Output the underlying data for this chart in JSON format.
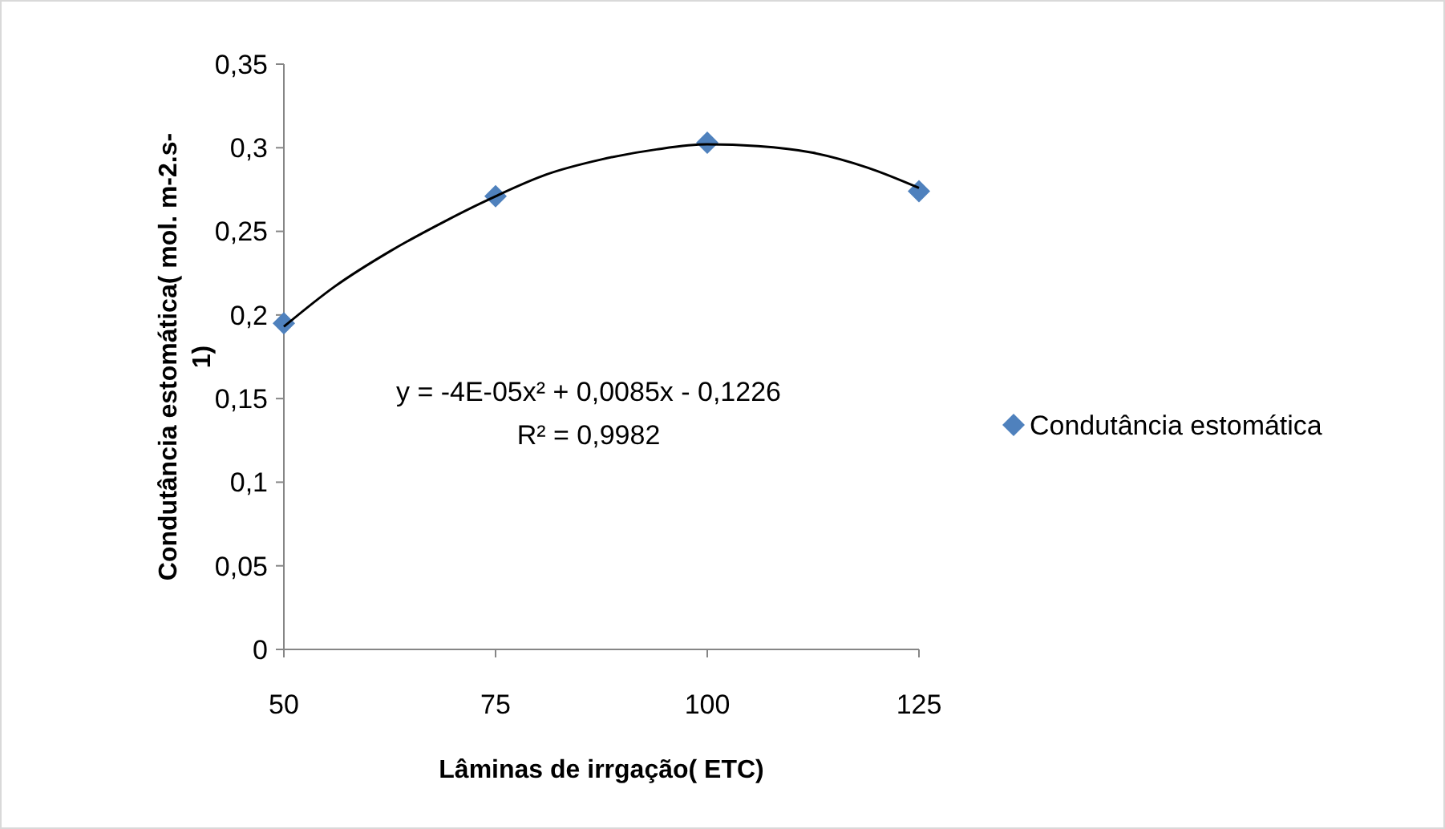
{
  "chart_data": {
    "type": "scatter",
    "xlabel": "Lâminas de irrgação( ETC)",
    "ylabel": "Condutância estomática( mol. m-2.s-1)",
    "x": [
      50,
      75,
      100,
      125
    ],
    "series": [
      {
        "name": "Condutância estomática",
        "color": "#4f81bd",
        "marker": "diamond",
        "values": [
          0.195,
          0.271,
          0.303,
          0.274
        ]
      },
      {
        "type": "line",
        "color": "#000000",
        "marker": "none",
        "x": [
          50,
          56,
          62.5,
          69,
          75,
          81,
          87.5,
          94,
          100,
          106,
          112.5,
          119,
          125
        ],
        "values": [
          0.193,
          0.217,
          0.238,
          0.256,
          0.271,
          0.284,
          0.293,
          0.299,
          0.302,
          0.301,
          0.297,
          0.288,
          0.276
        ]
      }
    ],
    "xlim": [
      50,
      125
    ],
    "xticks": [
      50,
      75,
      100,
      125
    ],
    "ylim": [
      0,
      0.35
    ],
    "yticks": [
      {
        "value": 0,
        "label": "0"
      },
      {
        "value": 0.05,
        "label": "0,05"
      },
      {
        "value": 0.1,
        "label": "0,1"
      },
      {
        "value": 0.15,
        "label": "0,15"
      },
      {
        "value": 0.2,
        "label": "0,2"
      },
      {
        "value": 0.25,
        "label": "0,25"
      },
      {
        "value": 0.3,
        "label": "0,3"
      },
      {
        "value": 0.35,
        "label": "0,35"
      }
    ],
    "grid": false,
    "legend": "right",
    "annotations": [
      "y = -4E-05x² + 0,0085x - 0,1226",
      "R² = 0,9982"
    ]
  }
}
